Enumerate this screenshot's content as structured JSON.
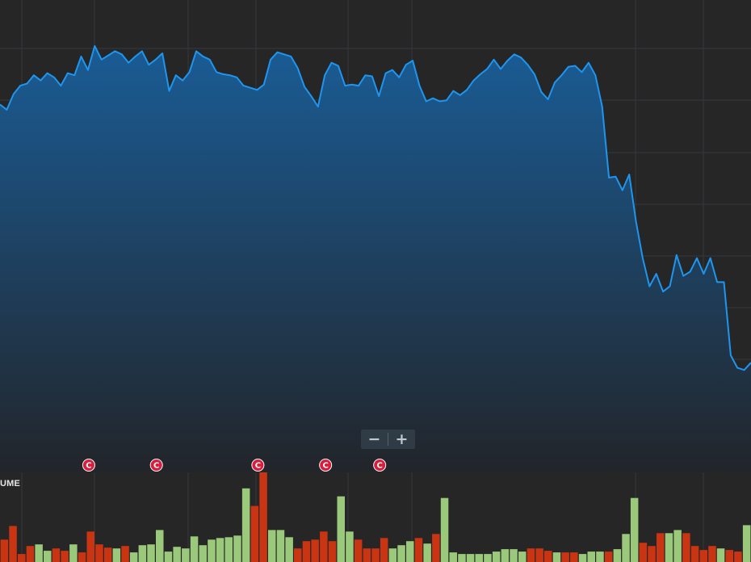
{
  "chart_data": [
    {
      "type": "area",
      "series": [
        {
          "values": [
            352,
            347,
            362,
            370,
            372,
            380,
            375,
            382,
            378,
            370,
            382,
            380,
            398,
            385,
            408,
            395,
            399,
            403,
            400,
            392,
            398,
            403,
            390,
            395,
            401,
            365,
            380,
            375,
            383,
            403,
            398,
            395,
            383,
            381,
            380,
            378,
            370,
            368,
            366,
            371,
            395,
            402,
            400,
            398,
            387,
            369,
            360,
            350,
            380,
            392,
            389,
            370,
            371,
            370,
            380,
            379,
            360,
            382,
            385,
            378,
            390,
            394,
            370,
            355,
            358,
            355,
            356,
            365,
            361,
            366,
            375,
            381,
            386,
            395,
            386,
            394,
            400,
            397,
            390,
            381,
            364,
            357,
            373,
            380,
            388,
            389,
            383,
            392,
            380,
            350,
            282,
            283,
            270,
            285,
            240,
            205,
            178,
            190,
            173,
            178,
            208,
            188,
            192,
            205,
            190,
            205,
            182,
            182,
            112,
            100,
            98,
            105
          ]
        }
      ],
      "ylim": [
        0,
        452
      ],
      "grid": true
    },
    {
      "type": "bar",
      "label": "VOLUME",
      "series": [
        {
          "values": [
            28,
            45,
            10,
            20,
            22,
            14,
            17,
            14,
            22,
            12,
            38,
            22,
            18,
            17,
            20,
            12,
            21,
            22,
            40,
            13,
            19,
            17,
            32,
            21,
            28,
            30,
            31,
            33,
            92,
            70,
            112,
            40,
            40,
            31,
            17,
            26,
            28,
            38,
            26,
            82,
            38,
            28,
            17,
            17,
            30,
            17,
            21,
            26,
            30,
            23,
            35,
            80,
            12,
            10,
            10,
            10,
            10,
            13,
            16,
            16,
            13,
            17,
            17,
            14,
            12,
            12,
            12,
            10,
            13,
            13,
            13,
            16,
            35,
            80,
            24,
            20,
            36,
            36,
            40,
            36,
            20,
            15,
            20,
            17,
            15,
            13,
            46
          ],
          "colors": [
            "r",
            "r",
            "r",
            "r",
            "g",
            "g",
            "r",
            "r",
            "g",
            "r",
            "r",
            "r",
            "r",
            "g",
            "r",
            "g",
            "g",
            "g",
            "g",
            "g",
            "g",
            "g",
            "g",
            "g",
            "g",
            "g",
            "g",
            "g",
            "g",
            "r",
            "r",
            "g",
            "g",
            "g",
            "r",
            "r",
            "r",
            "r",
            "r",
            "g",
            "g",
            "r",
            "r",
            "r",
            "r",
            "g",
            "g",
            "g",
            "r",
            "g",
            "r",
            "g",
            "g",
            "g",
            "g",
            "g",
            "g",
            "g",
            "g",
            "g",
            "g",
            "r",
            "r",
            "r",
            "g",
            "r",
            "r",
            "g",
            "g",
            "g",
            "r",
            "g",
            "g",
            "g",
            "r",
            "r",
            "r",
            "g",
            "g",
            "r",
            "r",
            "r",
            "r",
            "g",
            "r",
            "r",
            "g"
          ]
        }
      ],
      "palette": {
        "g": "#9bc97b",
        "r": "#c93512"
      }
    }
  ],
  "colors": {
    "background": "#262626",
    "line": "#1e96f0",
    "area_top": "#1a5c95",
    "area_bottom": "#22252a",
    "grid": "#34383d",
    "marker": "#d81e3c",
    "separator": "#8a8a8a"
  },
  "markers": [
    {
      "letter": "C",
      "index": 13
    },
    {
      "letter": "C",
      "index": 23
    },
    {
      "letter": "C",
      "index": 38
    },
    {
      "letter": "C",
      "index": 48
    },
    {
      "letter": "C",
      "index": 56
    }
  ],
  "volume_label": "UME",
  "zoom": {
    "minus": "−",
    "plus": "+"
  },
  "icons": {
    "zoom_out": "minus-icon",
    "zoom_in": "plus-icon",
    "marker": "event-c-icon"
  }
}
